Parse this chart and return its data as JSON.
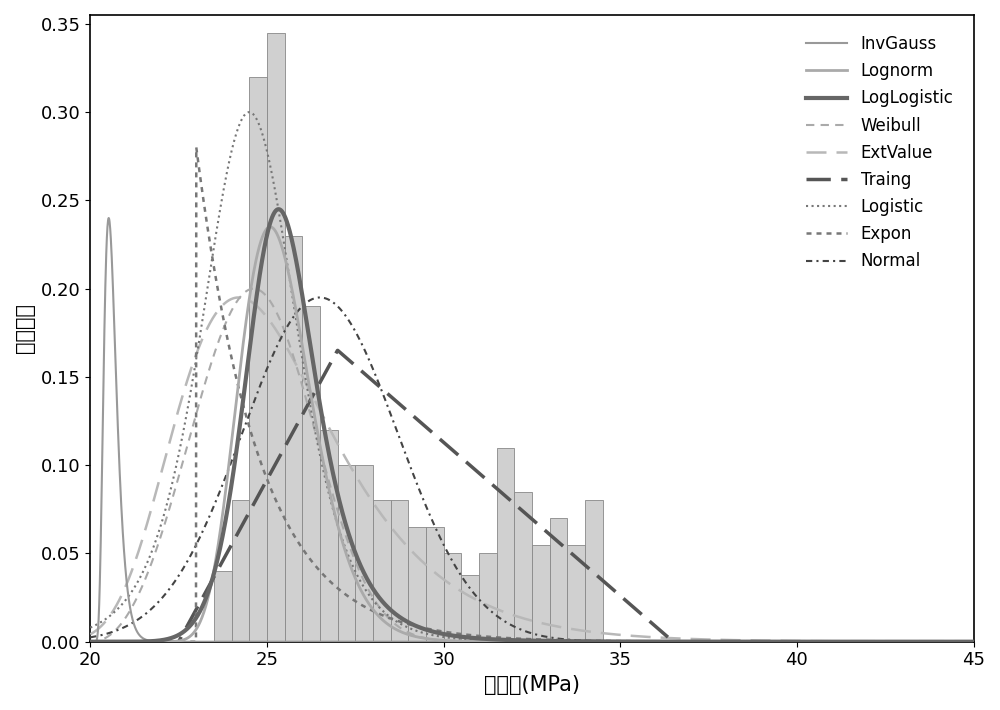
{
  "xlim": [
    20,
    45
  ],
  "ylim": [
    0,
    0.355
  ],
  "xlabel": "内聚力(MPa)",
  "ylabel": "概率密度",
  "bar_color": "#d0d0d0",
  "bar_edge_color": "#888888",
  "bar_bins_left": [
    23.5,
    24.0,
    24.5,
    25.0,
    25.5,
    26.0,
    26.5,
    27.0,
    27.5,
    28.0,
    28.5,
    29.0,
    29.5,
    30.0,
    30.5,
    31.0,
    31.5,
    32.0,
    32.5,
    33.0,
    33.5,
    34.0
  ],
  "bar_heights": [
    0.04,
    0.08,
    0.32,
    0.345,
    0.23,
    0.19,
    0.12,
    0.1,
    0.1,
    0.08,
    0.08,
    0.065,
    0.065,
    0.05,
    0.038,
    0.05,
    0.11,
    0.085,
    0.055,
    0.07,
    0.055,
    0.08
  ],
  "bar_width": 0.5,
  "background_color": "#ffffff",
  "tick_fontsize": 13,
  "label_fontsize": 15,
  "legend_fontsize": 12
}
